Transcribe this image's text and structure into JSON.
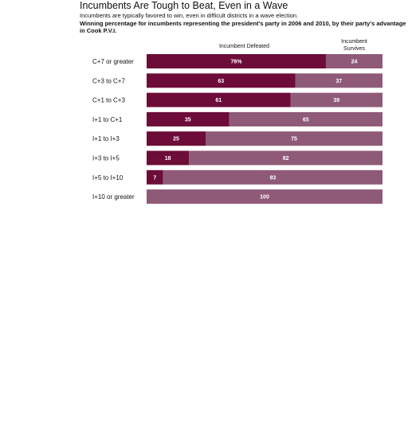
{
  "chart_data": {
    "type": "bar",
    "orientation": "horizontal",
    "stacked": true,
    "title": "Incumbents Are Tough to Beat, Even in a Wave",
    "subtitle": "Incumbents are typically favored to win, even in difficult districts in a wave election.",
    "note": "Winning percentage for incumbents representing the president's party in 2006 and 2010, by their party's advantage in Cook P.V.I.",
    "categories": [
      "C+7 or greater",
      "C+3 to C+7",
      "C+1 to C+3",
      "I+1 to C+1",
      "I+1 to I+3",
      "I+3 to I+5",
      "I+5 to I+10",
      "I+10 or greater"
    ],
    "series": [
      {
        "name": "Incumbent Defeated",
        "color": "#6d0c38",
        "values": [
          76,
          63,
          61,
          35,
          25,
          18,
          7,
          0
        ],
        "labels": [
          "76%",
          "63",
          "61",
          "35",
          "25",
          "18",
          "7",
          ""
        ]
      },
      {
        "name": "Incumbent Survives",
        "color": "#8e5a77",
        "values": [
          24,
          37,
          39,
          65,
          75,
          82,
          93,
          100
        ],
        "labels": [
          "24",
          "37",
          "39",
          "65",
          "75",
          "82",
          "93",
          "100"
        ]
      }
    ],
    "xlim": [
      0,
      100
    ],
    "grid": false,
    "legend": "column headers above bars"
  }
}
